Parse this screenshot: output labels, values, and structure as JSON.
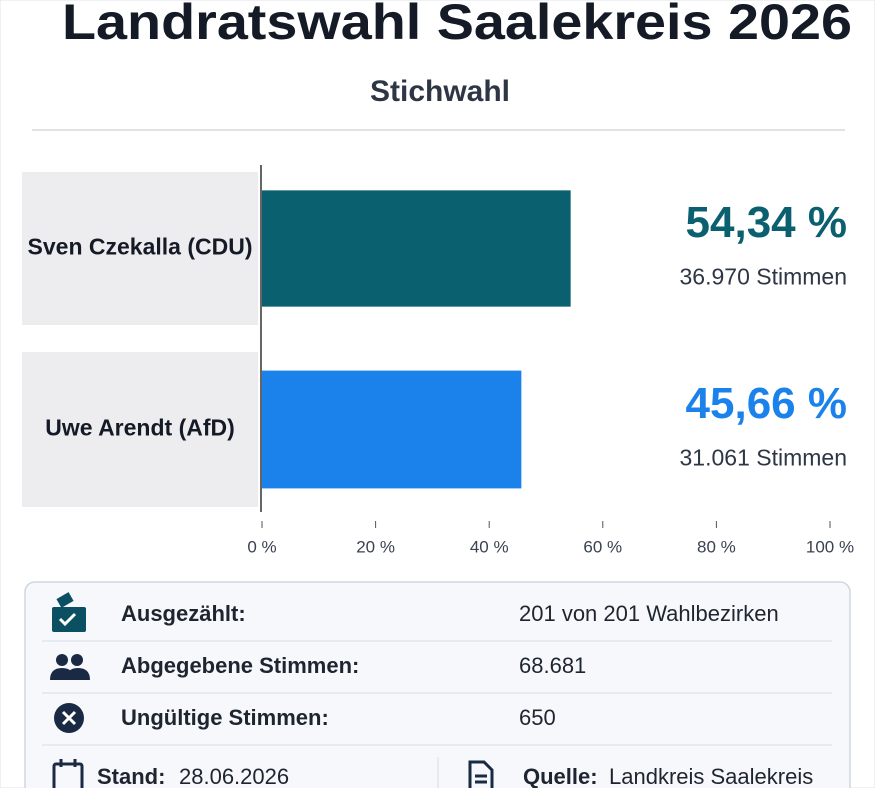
{
  "chart_data": {
    "type": "hbar",
    "title": "Landratswahl Saalekreis 2026",
    "subtitle": "Stichwahl",
    "categories": [
      "Sven Czekalla (CDU)",
      "Uwe Arendt (AfD)"
    ],
    "values": [
      54.34,
      45.66
    ],
    "value_labels": [
      "54,34 %",
      "45,66 %"
    ],
    "votes": [
      "36.970 Stimmen",
      "31.061 Stimmen"
    ],
    "colors": [
      "#0b6070",
      "#1a82ea"
    ],
    "xlim": [
      0,
      100
    ],
    "xticks": [
      {
        "value": 0,
        "label": "0 %"
      },
      {
        "value": 20,
        "label": "20 %"
      },
      {
        "value": 40,
        "label": "40 %"
      },
      {
        "value": 60,
        "label": "60 %"
      },
      {
        "value": 80,
        "label": "80 %"
      },
      {
        "value": 100,
        "label": "100 %"
      }
    ]
  },
  "info": {
    "rows": [
      {
        "label": "Ausgezählt:",
        "value": "201 von 201 Wahlbezirken"
      },
      {
        "label": "Abgegebene Stimmen:",
        "value": "68.681"
      },
      {
        "label": "Ungültige Stimmen:",
        "value": "650"
      }
    ],
    "footer": {
      "stand_label": "Stand:",
      "stand_value": "28.06.2026",
      "source_label": "Quelle:",
      "source_value": "Landkreis Saalekreis"
    }
  }
}
